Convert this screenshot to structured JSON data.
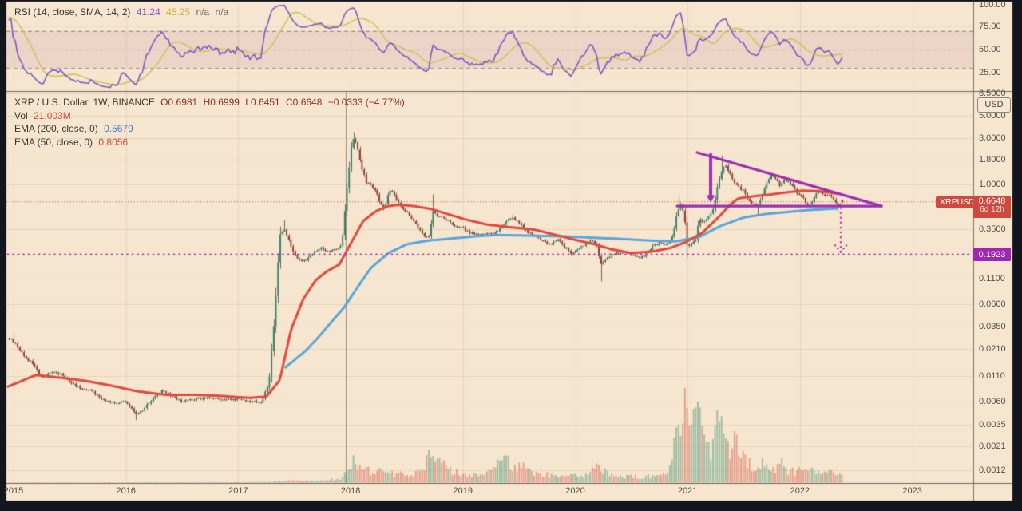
{
  "colors": {
    "frame": "#14161e",
    "background": "#f7e6cf",
    "grid": "rgba(120,100,75,0.13)",
    "separator": "#6e675c",
    "axis_line": "#7a736a",
    "candle_up": "#35836a",
    "candle_down": "#9a372e",
    "wick": "#6e685e",
    "vol_up": "rgba(70,150,120,0.5)",
    "vol_down": "rgba(210,90,75,0.5)",
    "ema50": "#e1493d",
    "ema200": "#57a6dd",
    "rsi_line": "#7d58c2",
    "rsi_sma": "#d3c15e",
    "rsi_band": "rgba(150,70,135,0.10)",
    "rsi_dash": "rgba(105,105,115,0.8)",
    "rsi_dash_mid": "rgba(130,130,140,0.55)",
    "last_price_line": "#d84b3f",
    "support_dotted": "#ab35b8",
    "drawing_purple": "#9c2fb2",
    "event_line": "rgba(75,70,64,0.55)",
    "badge_red": "#d0493e",
    "badge_purple": "#9c27b0"
  },
  "rsi_pane": {
    "legend": {
      "title": "RSI (14, close, SMA, 14, 2)",
      "rsi_value": "41.24",
      "sma_value": "45.25",
      "na1": "n/a",
      "na2": "n/a"
    },
    "ticks": [
      {
        "label": "100.00",
        "value": 100
      },
      {
        "label": "75.00",
        "value": 75
      },
      {
        "label": "50.00",
        "value": 50
      },
      {
        "label": "25.00",
        "value": 25
      }
    ],
    "levels": {
      "upper": 70,
      "middle": 50,
      "lower": 30
    }
  },
  "main_pane": {
    "legend": {
      "title": "XRP / U.S. Dollar, 1W, BINANCE",
      "o": "O0.6981",
      "h": "H0.6999",
      "l": "L0.6451",
      "c": "C0.6648",
      "chg": "−0.0333 (−4.77%)",
      "vol_label": "Vol",
      "vol_value": "21.003M",
      "ema200_label": "EMA (200, close, 0)",
      "ema200_value": "0.5679",
      "ema50_label": "EMA (50, close, 0)",
      "ema50_value": "0.8056"
    },
    "currency_badge": "USD",
    "price_ticks": [
      {
        "label": "8.5000",
        "value": 8.5
      },
      {
        "label": "5.0000",
        "value": 5.0
      },
      {
        "label": "3.0000",
        "value": 3.0
      },
      {
        "label": "1.8000",
        "value": 1.8
      },
      {
        "label": "1.0000",
        "value": 1.0
      },
      {
        "label": "0.3500",
        "value": 0.35
      },
      {
        "label": "0.1100",
        "value": 0.11
      },
      {
        "label": "0.0600",
        "value": 0.06
      },
      {
        "label": "0.0350",
        "value": 0.035
      },
      {
        "label": "0.0210",
        "value": 0.021
      },
      {
        "label": "0.0110",
        "value": 0.011
      },
      {
        "label": "0.0060",
        "value": 0.006
      },
      {
        "label": "0.0035",
        "value": 0.0035
      },
      {
        "label": "0.0021",
        "value": 0.0021
      },
      {
        "label": "0.0012",
        "value": 0.0012
      }
    ],
    "last_price_label": {
      "symbol": "XRPUSD",
      "price": "0.6648",
      "countdown": "6d 12h"
    },
    "support_label": {
      "text": "0.1923"
    }
  },
  "time_axis": {
    "years": [
      {
        "label": "2015",
        "value": 2015
      },
      {
        "label": "2016",
        "value": 2016
      },
      {
        "label": "2017",
        "value": 2017
      },
      {
        "label": "2018",
        "value": 2018
      },
      {
        "label": "2019",
        "value": 2019
      },
      {
        "label": "2020",
        "value": 2020
      },
      {
        "label": "2021",
        "value": 2021
      },
      {
        "label": "2022",
        "value": 2022
      },
      {
        "label": "2023",
        "value": 2023
      }
    ]
  },
  "chart_data": {
    "type": "candlestick",
    "symbol": "XRP/USD",
    "exchange": "BINANCE",
    "timeframe": "1W",
    "price_log_scale": true,
    "x_domain_years": [
      2014.94,
      2023.85
    ],
    "levels": {
      "last_price": 0.6648,
      "support": 0.1923
    },
    "last_candle": {
      "o": 0.6981,
      "h": 0.6999,
      "l": 0.6451,
      "c": 0.6648
    },
    "close_anchors": [
      [
        2014.0,
        0.013
      ],
      [
        2014.3,
        0.017
      ],
      [
        2014.6,
        0.019
      ],
      [
        2014.75,
        0.0225
      ],
      [
        2014.9,
        0.026
      ],
      [
        2014.97,
        0.027
      ],
      [
        2015.04,
        0.0215
      ],
      [
        2015.1,
        0.017
      ],
      [
        2015.18,
        0.0145
      ],
      [
        2015.25,
        0.0105
      ],
      [
        2015.33,
        0.0122
      ],
      [
        2015.42,
        0.0115
      ],
      [
        2015.5,
        0.0095
      ],
      [
        2015.6,
        0.0082
      ],
      [
        2015.7,
        0.0078
      ],
      [
        2015.8,
        0.0062
      ],
      [
        2015.9,
        0.0058
      ],
      [
        2016.0,
        0.0061
      ],
      [
        2016.08,
        0.0045
      ],
      [
        2016.14,
        0.0048
      ],
      [
        2016.22,
        0.0062
      ],
      [
        2016.33,
        0.008
      ],
      [
        2016.4,
        0.0068
      ],
      [
        2016.5,
        0.0061
      ],
      [
        2016.6,
        0.0063
      ],
      [
        2016.7,
        0.0067
      ],
      [
        2016.8,
        0.0064
      ],
      [
        2016.9,
        0.0063
      ],
      [
        2017.0,
        0.0064
      ],
      [
        2017.1,
        0.0061
      ],
      [
        2017.2,
        0.0059
      ],
      [
        2017.27,
        0.009
      ],
      [
        2017.32,
        0.04
      ],
      [
        2017.37,
        0.3
      ],
      [
        2017.41,
        0.345
      ],
      [
        2017.45,
        0.27
      ],
      [
        2017.5,
        0.19
      ],
      [
        2017.56,
        0.16
      ],
      [
        2017.62,
        0.175
      ],
      [
        2017.68,
        0.205
      ],
      [
        2017.74,
        0.225
      ],
      [
        2017.8,
        0.205
      ],
      [
        2017.86,
        0.215
      ],
      [
        2017.92,
        0.24
      ],
      [
        2017.96,
        0.75
      ],
      [
        2018.0,
        2.2
      ],
      [
        2018.03,
        3.05
      ],
      [
        2018.06,
        2.3
      ],
      [
        2018.1,
        1.45
      ],
      [
        2018.14,
        1.05
      ],
      [
        2018.18,
        0.98
      ],
      [
        2018.22,
        0.88
      ],
      [
        2018.26,
        0.65
      ],
      [
        2018.3,
        0.56
      ],
      [
        2018.34,
        0.88
      ],
      [
        2018.38,
        0.8
      ],
      [
        2018.42,
        0.66
      ],
      [
        2018.47,
        0.56
      ],
      [
        2018.53,
        0.48
      ],
      [
        2018.6,
        0.36
      ],
      [
        2018.66,
        0.29
      ],
      [
        2018.7,
        0.3
      ],
      [
        2018.73,
        0.55
      ],
      [
        2018.77,
        0.48
      ],
      [
        2018.82,
        0.46
      ],
      [
        2018.88,
        0.41
      ],
      [
        2018.94,
        0.37
      ],
      [
        2019.0,
        0.36
      ],
      [
        2019.06,
        0.32
      ],
      [
        2019.14,
        0.31
      ],
      [
        2019.22,
        0.31
      ],
      [
        2019.3,
        0.325
      ],
      [
        2019.38,
        0.42
      ],
      [
        2019.44,
        0.455
      ],
      [
        2019.5,
        0.4
      ],
      [
        2019.57,
        0.33
      ],
      [
        2019.64,
        0.3
      ],
      [
        2019.72,
        0.26
      ],
      [
        2019.78,
        0.245
      ],
      [
        2019.84,
        0.28
      ],
      [
        2019.9,
        0.23
      ],
      [
        2019.96,
        0.2
      ],
      [
        2020.02,
        0.215
      ],
      [
        2020.08,
        0.24
      ],
      [
        2020.14,
        0.275
      ],
      [
        2020.19,
        0.23
      ],
      [
        2020.23,
        0.15
      ],
      [
        2020.28,
        0.175
      ],
      [
        2020.34,
        0.195
      ],
      [
        2020.42,
        0.2
      ],
      [
        2020.5,
        0.195
      ],
      [
        2020.57,
        0.177
      ],
      [
        2020.64,
        0.2
      ],
      [
        2020.7,
        0.24
      ],
      [
        2020.76,
        0.254
      ],
      [
        2020.82,
        0.245
      ],
      [
        2020.87,
        0.31
      ],
      [
        2020.91,
        0.55
      ],
      [
        2020.94,
        0.62
      ],
      [
        2020.97,
        0.47
      ],
      [
        2021.0,
        0.215
      ],
      [
        2021.03,
        0.25
      ],
      [
        2021.07,
        0.27
      ],
      [
        2021.1,
        0.44
      ],
      [
        2021.14,
        0.41
      ],
      [
        2021.18,
        0.46
      ],
      [
        2021.23,
        0.57
      ],
      [
        2021.27,
        1.02
      ],
      [
        2021.31,
        1.42
      ],
      [
        2021.34,
        1.52
      ],
      [
        2021.38,
        1.28
      ],
      [
        2021.42,
        1.02
      ],
      [
        2021.46,
        0.92
      ],
      [
        2021.5,
        0.86
      ],
      [
        2021.54,
        0.7
      ],
      [
        2021.58,
        0.63
      ],
      [
        2021.62,
        0.61
      ],
      [
        2021.66,
        0.75
      ],
      [
        2021.7,
        1.03
      ],
      [
        2021.74,
        1.24
      ],
      [
        2021.78,
        1.18
      ],
      [
        2021.82,
        0.97
      ],
      [
        2021.86,
        1.12
      ],
      [
        2021.9,
        1.07
      ],
      [
        2021.94,
        0.96
      ],
      [
        2021.98,
        0.8
      ],
      [
        2022.02,
        0.75
      ],
      [
        2022.06,
        0.615
      ],
      [
        2022.1,
        0.63
      ],
      [
        2022.14,
        0.8
      ],
      [
        2022.18,
        0.84
      ],
      [
        2022.22,
        0.76
      ],
      [
        2022.26,
        0.79
      ],
      [
        2022.3,
        0.71
      ],
      [
        2022.335,
        0.6
      ],
      [
        2022.36,
        0.655
      ],
      [
        2022.385,
        0.6648
      ]
    ],
    "wick_events": [
      {
        "t": 2015.0,
        "h": 0.0295
      },
      {
        "t": 2016.08,
        "l": 0.0039
      },
      {
        "t": 2017.41,
        "h": 0.43
      },
      {
        "t": 2018.03,
        "h": 3.42
      },
      {
        "t": 2018.73,
        "h": 0.79
      },
      {
        "t": 2019.44,
        "h": 0.5
      },
      {
        "t": 2020.23,
        "l": 0.102
      },
      {
        "t": 2020.91,
        "h": 0.78
      },
      {
        "t": 2021.0,
        "l": 0.172
      },
      {
        "t": 2021.31,
        "h": 1.97
      },
      {
        "t": 2021.62,
        "l": 0.5
      },
      {
        "t": 2022.335,
        "l": 0.523
      }
    ],
    "volume_anchors": [
      [
        2014.0,
        0.3
      ],
      [
        2016.0,
        0.4
      ],
      [
        2017.0,
        0.6
      ],
      [
        2017.3,
        1.2
      ],
      [
        2017.45,
        2.5
      ],
      [
        2017.7,
        2
      ],
      [
        2017.92,
        5
      ],
      [
        2018.0,
        26
      ],
      [
        2018.07,
        22
      ],
      [
        2018.15,
        15
      ],
      [
        2018.3,
        13
      ],
      [
        2018.45,
        10
      ],
      [
        2018.6,
        12
      ],
      [
        2018.72,
        38
      ],
      [
        2018.85,
        18
      ],
      [
        2019.0,
        10
      ],
      [
        2019.2,
        10
      ],
      [
        2019.36,
        27
      ],
      [
        2019.5,
        20
      ],
      [
        2019.7,
        10
      ],
      [
        2019.9,
        8
      ],
      [
        2020.05,
        8
      ],
      [
        2020.2,
        18
      ],
      [
        2020.35,
        9
      ],
      [
        2020.55,
        7
      ],
      [
        2020.7,
        8
      ],
      [
        2020.82,
        10
      ],
      [
        2020.87,
        30
      ],
      [
        2020.91,
        80
      ],
      [
        2020.95,
        52
      ],
      [
        2020.98,
        122
      ],
      [
        2021.02,
        62
      ],
      [
        2021.06,
        90
      ],
      [
        2021.1,
        110
      ],
      [
        2021.14,
        56
      ],
      [
        2021.19,
        42
      ],
      [
        2021.23,
        52
      ],
      [
        2021.27,
        90
      ],
      [
        2021.31,
        68
      ],
      [
        2021.35,
        52
      ],
      [
        2021.39,
        44
      ],
      [
        2021.43,
        52
      ],
      [
        2021.47,
        36
      ],
      [
        2021.53,
        26
      ],
      [
        2021.59,
        20
      ],
      [
        2021.64,
        27
      ],
      [
        2021.71,
        20
      ],
      [
        2021.77,
        16
      ],
      [
        2021.83,
        24
      ],
      [
        2021.89,
        15
      ],
      [
        2021.95,
        13
      ],
      [
        2022.01,
        17
      ],
      [
        2022.07,
        13
      ],
      [
        2022.13,
        15
      ],
      [
        2022.21,
        11
      ],
      [
        2022.28,
        13
      ],
      [
        2022.34,
        11
      ],
      [
        2022.385,
        7
      ]
    ],
    "ema50_points": [
      [
        2014.95,
        0.0086
      ],
      [
        2015.2,
        0.0113
      ],
      [
        2015.45,
        0.0105
      ],
      [
        2015.65,
        0.0098
      ],
      [
        2015.85,
        0.0089
      ],
      [
        2016.1,
        0.0077
      ],
      [
        2016.35,
        0.0071
      ],
      [
        2016.6,
        0.0071
      ],
      [
        2016.85,
        0.0069
      ],
      [
        2017.1,
        0.0066
      ],
      [
        2017.25,
        0.0068
      ],
      [
        2017.37,
        0.01
      ],
      [
        2017.47,
        0.033
      ],
      [
        2017.58,
        0.068
      ],
      [
        2017.69,
        0.105
      ],
      [
        2017.79,
        0.13
      ],
      [
        2017.9,
        0.152
      ],
      [
        2018.01,
        0.26
      ],
      [
        2018.11,
        0.42
      ],
      [
        2018.22,
        0.53
      ],
      [
        2018.33,
        0.6
      ],
      [
        2018.43,
        0.62
      ],
      [
        2018.57,
        0.6
      ],
      [
        2018.72,
        0.56
      ],
      [
        2018.86,
        0.5
      ],
      [
        2019.02,
        0.44
      ],
      [
        2019.21,
        0.39
      ],
      [
        2019.43,
        0.365
      ],
      [
        2019.64,
        0.345
      ],
      [
        2019.85,
        0.3
      ],
      [
        2020.01,
        0.27
      ],
      [
        2020.17,
        0.245
      ],
      [
        2020.32,
        0.218
      ],
      [
        2020.49,
        0.2
      ],
      [
        2020.67,
        0.205
      ],
      [
        2020.85,
        0.225
      ],
      [
        2020.99,
        0.26
      ],
      [
        2021.13,
        0.32
      ],
      [
        2021.28,
        0.47
      ],
      [
        2021.38,
        0.62
      ],
      [
        2021.45,
        0.72
      ],
      [
        2021.6,
        0.76
      ],
      [
        2021.74,
        0.79
      ],
      [
        2021.88,
        0.83
      ],
      [
        2022.02,
        0.865
      ],
      [
        2022.16,
        0.855
      ],
      [
        2022.27,
        0.825
      ],
      [
        2022.33,
        0.8056
      ]
    ],
    "ema200_points": [
      [
        2017.42,
        0.0135
      ],
      [
        2017.6,
        0.02
      ],
      [
        2017.72,
        0.028
      ],
      [
        2017.85,
        0.042
      ],
      [
        2017.94,
        0.055
      ],
      [
        2018.05,
        0.085
      ],
      [
        2018.18,
        0.14
      ],
      [
        2018.34,
        0.2
      ],
      [
        2018.5,
        0.245
      ],
      [
        2018.7,
        0.268
      ],
      [
        2018.9,
        0.28
      ],
      [
        2019.1,
        0.295
      ],
      [
        2019.3,
        0.305
      ],
      [
        2019.6,
        0.3
      ],
      [
        2019.9,
        0.295
      ],
      [
        2020.1,
        0.288
      ],
      [
        2020.4,
        0.278
      ],
      [
        2020.7,
        0.266
      ],
      [
        2020.9,
        0.262
      ],
      [
        2021.1,
        0.29
      ],
      [
        2021.3,
        0.38
      ],
      [
        2021.5,
        0.46
      ],
      [
        2021.7,
        0.5
      ],
      [
        2021.9,
        0.525
      ],
      [
        2022.1,
        0.55
      ],
      [
        2022.33,
        0.5679
      ]
    ],
    "drawings": {
      "triangle_upper": {
        "t1": 2021.084,
        "p1": 2.12,
        "t2": 2022.726,
        "p2": 0.601
      },
      "support_line": {
        "t1": 2020.906,
        "t2": 2022.726,
        "p": 0.601
      },
      "breakdown_arrow": {
        "t": 2021.205,
        "p_from": 2.02,
        "p_to": 0.655
      },
      "measure_arrow": {
        "t": 2022.363,
        "p_from": 0.575,
        "p_to": 0.205
      },
      "event_vline_year": 2017.957
    },
    "indicators": {
      "rsi_last": 41.24,
      "rsi_sma_last": 45.25,
      "ema200_last": 0.5679,
      "ema50_last": 0.8056,
      "volume_last": "21.003M"
    }
  }
}
